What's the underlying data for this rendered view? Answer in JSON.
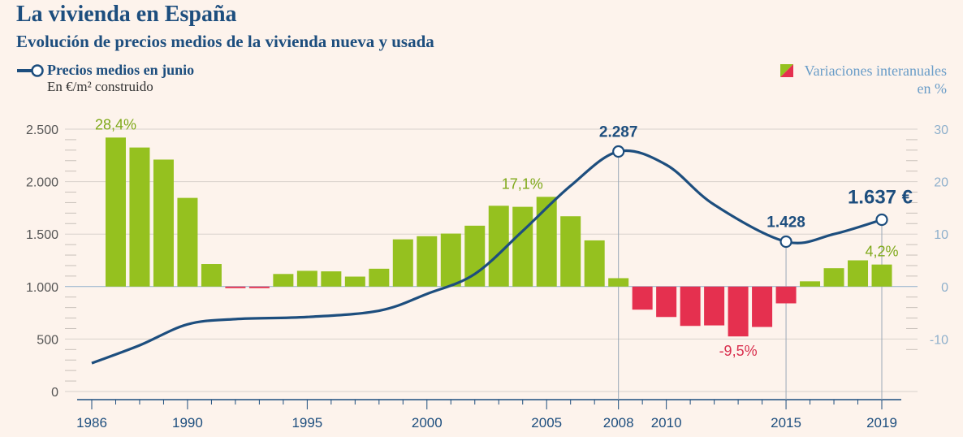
{
  "title": "La vivienda en España",
  "subtitle": "Evolución de precios medios de la vivienda nueva y usada",
  "legend": {
    "line_label": "Precios medios en junio",
    "line_unit": "En €/m² construido",
    "bars_label_1": "Variaciones interanuales",
    "bars_label_2": "en %"
  },
  "colors": {
    "positive": "#95c11f",
    "negative": "#e5304f",
    "line": "#1d4e7e",
    "pos_label": "#7fa91a",
    "neg_label": "#d9304f"
  },
  "chart_data": {
    "type": "bar+line",
    "left_axis": {
      "ylim": [
        0,
        2500
      ],
      "ticks": [
        "0",
        "500",
        "1.000",
        "1.500",
        "2.000",
        "2.500"
      ],
      "tick_values": [
        0,
        500,
        1000,
        1500,
        2000,
        2500
      ]
    },
    "right_axis": {
      "ylim": [
        -10,
        30
      ],
      "ticks": [
        "-10",
        "0",
        "10",
        "20",
        "30"
      ],
      "tick_values": [
        -10,
        0,
        10,
        20,
        30
      ]
    },
    "x_range": [
      1986,
      2019
    ],
    "x_ticks": [
      "1986",
      "1990",
      "1995",
      "2000",
      "2005",
      "2008",
      "2010",
      "2015",
      "2019"
    ],
    "x_tick_values": [
      1986,
      1990,
      1995,
      2000,
      2005,
      2008,
      2010,
      2015,
      2019
    ],
    "bars": {
      "name": "Variaciones interanuales",
      "years": [
        1987,
        1988,
        1989,
        1990,
        1991,
        1992,
        1993,
        1994,
        1995,
        1996,
        1997,
        1998,
        1999,
        2000,
        2001,
        2002,
        2003,
        2004,
        2005,
        2006,
        2007,
        2008,
        2009,
        2010,
        2011,
        2012,
        2013,
        2014,
        2015,
        2016,
        2017,
        2018,
        2019
      ],
      "values": [
        28.4,
        26.5,
        24.2,
        16.9,
        4.3,
        -0.3,
        -0.3,
        2.4,
        3.0,
        2.9,
        1.9,
        3.4,
        9.0,
        9.6,
        10.1,
        11.6,
        15.4,
        15.2,
        17.1,
        13.4,
        8.8,
        1.6,
        -4.4,
        -5.8,
        -7.5,
        -7.4,
        -9.5,
        -7.7,
        -3.2,
        1.0,
        3.5,
        5.0,
        4.2
      ]
    },
    "line": {
      "name": "Precios medios en junio",
      "years": [
        1986,
        1988,
        1990,
        1992,
        1995,
        1998,
        2000,
        2002,
        2004,
        2006,
        2008,
        2010,
        2012,
        2015,
        2017,
        2019
      ],
      "values": [
        270,
        440,
        640,
        690,
        710,
        770,
        930,
        1120,
        1530,
        1960,
        2287,
        2160,
        1780,
        1428,
        1500,
        1637
      ]
    },
    "markers": [
      {
        "year": 2008,
        "value": 2287,
        "label": "2.287"
      },
      {
        "year": 2015,
        "value": 1428,
        "label": "1.428"
      },
      {
        "year": 2019,
        "value": 1637,
        "label": "1.637 €"
      }
    ],
    "bar_labels": [
      {
        "year": 1987,
        "value": 28.4,
        "label": "28,4%"
      },
      {
        "year": 2005,
        "value": 17.1,
        "label": "17,1%"
      },
      {
        "year": 2013,
        "value": -9.5,
        "label": "-9,5%"
      },
      {
        "year": 2019,
        "value": 4.2,
        "label": "4,2%"
      }
    ]
  }
}
